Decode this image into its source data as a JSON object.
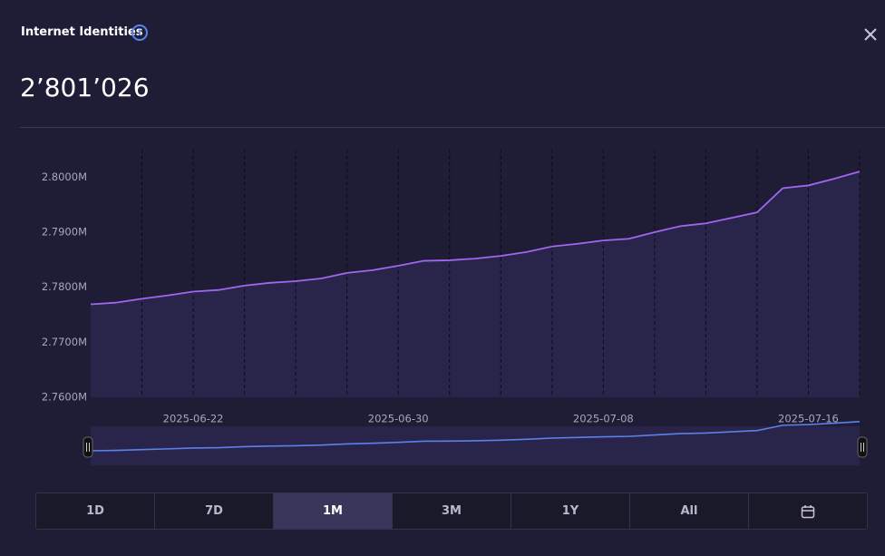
{
  "header": {
    "title": "Internet Identities",
    "value": "2’801’026"
  },
  "range_buttons": [
    "1D",
    "7D",
    "1M",
    "3M",
    "1Y",
    "All"
  ],
  "selected_range": "1M",
  "chart_data": {
    "type": "area",
    "x": [
      "2025-06-18",
      "2025-06-19",
      "2025-06-20",
      "2025-06-21",
      "2025-06-22",
      "2025-06-23",
      "2025-06-24",
      "2025-06-25",
      "2025-06-26",
      "2025-06-27",
      "2025-06-28",
      "2025-06-29",
      "2025-06-30",
      "2025-07-01",
      "2025-07-02",
      "2025-07-03",
      "2025-07-04",
      "2025-07-05",
      "2025-07-06",
      "2025-07-07",
      "2025-07-08",
      "2025-07-09",
      "2025-07-10",
      "2025-07-11",
      "2025-07-12",
      "2025-07-13",
      "2025-07-14",
      "2025-07-15",
      "2025-07-16",
      "2025-07-17",
      "2025-07-18"
    ],
    "values": [
      2.7769,
      2.7772,
      2.7779,
      2.7785,
      2.7792,
      2.7795,
      2.7803,
      2.7808,
      2.7811,
      2.7816,
      2.7826,
      2.7831,
      2.7839,
      2.7848,
      2.7849,
      2.7852,
      2.7857,
      2.7864,
      2.7874,
      2.7879,
      2.7885,
      2.7888,
      2.79,
      2.7911,
      2.7916,
      2.7926,
      2.7936,
      2.798,
      2.7985,
      2.7997,
      2.801026
    ],
    "color": "#a066f0",
    "area_color": "#29244a",
    "navigator_color": "#5b82ea",
    "ylim": [
      2.76,
      2.805
    ],
    "yticks": [
      {
        "value": 2.76,
        "label": "2.7600M"
      },
      {
        "value": 2.77,
        "label": "2.7700M"
      },
      {
        "value": 2.78,
        "label": "2.7800M"
      },
      {
        "value": 2.79,
        "label": "2.7900M"
      },
      {
        "value": 2.8,
        "label": "2.8000M"
      }
    ],
    "xticks": [
      "2025-06-22",
      "2025-06-30",
      "2025-07-08",
      "2025-07-16"
    ],
    "grid": true
  }
}
